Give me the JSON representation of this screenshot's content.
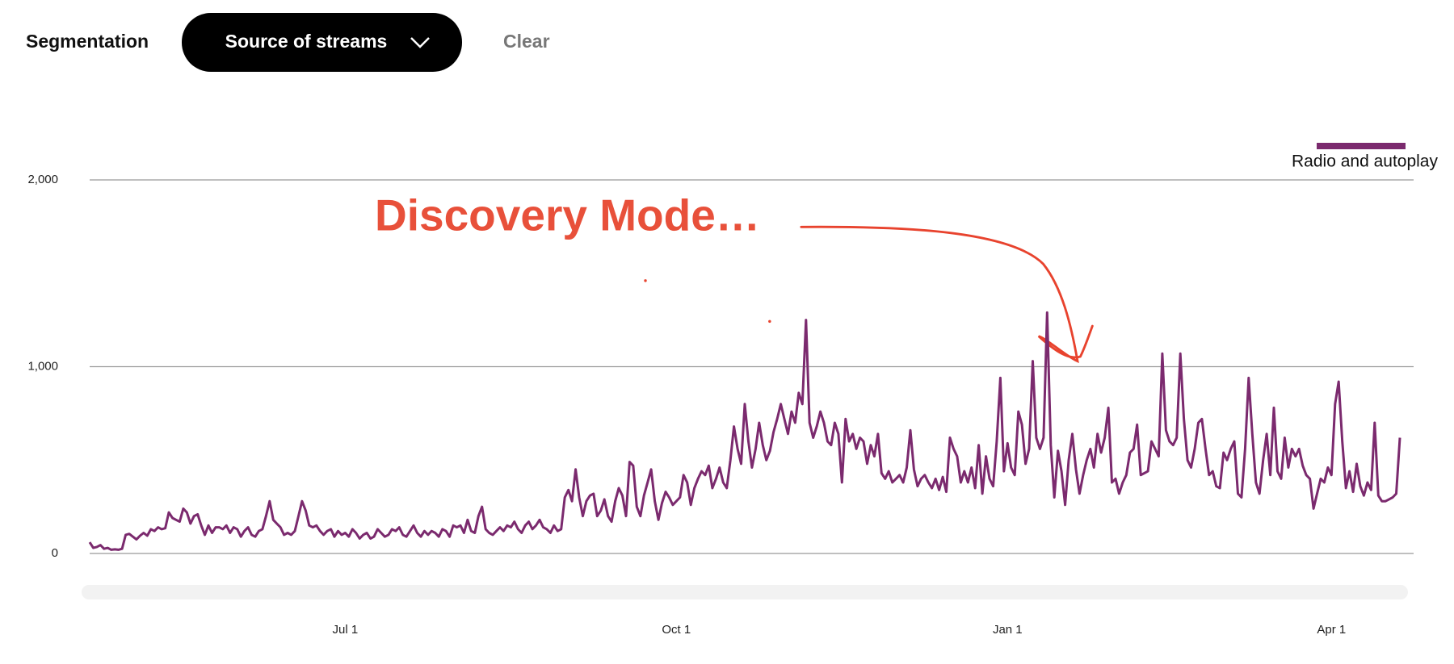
{
  "header": {
    "label": "Segmentation",
    "dropdown": "Source of streams",
    "clear": "Clear"
  },
  "chart_data": {
    "type": "line",
    "annotation": "Discovery Mode…",
    "ylim": [
      0,
      2000
    ],
    "yticks": [
      0,
      {
        "value": 1000,
        "label": "1,000"
      },
      {
        "value": 2000,
        "label": "2,000"
      }
    ],
    "grid": true,
    "legend": "top-right",
    "categories": [
      null,
      null,
      null,
      null,
      null,
      null,
      null,
      null,
      null,
      null,
      null,
      null,
      null,
      null,
      null,
      null,
      null,
      null,
      null,
      null,
      null,
      null,
      null,
      null,
      null,
      null,
      null,
      null,
      null,
      null,
      null,
      null,
      null,
      null,
      null,
      null,
      null,
      null,
      null,
      null,
      null,
      null,
      null,
      null,
      null,
      null,
      null,
      null,
      null,
      null,
      null,
      null,
      null,
      null,
      null,
      null,
      null,
      null,
      null,
      null,
      null,
      null,
      null,
      null,
      null,
      null,
      null,
      null,
      null,
      null,
      null,
      "Jul 1",
      null,
      null,
      null,
      null,
      null,
      null,
      null,
      null,
      null,
      null,
      null,
      null,
      null,
      null,
      null,
      null,
      null,
      null,
      null,
      null,
      null,
      null,
      null,
      null,
      null,
      null,
      null,
      null,
      null,
      null,
      null,
      null,
      null,
      null,
      null,
      null,
      null,
      null,
      null,
      null,
      null,
      null,
      null,
      null,
      null,
      null,
      null,
      null,
      null,
      null,
      null,
      null,
      null,
      null,
      null,
      null,
      null,
      null,
      null,
      null,
      null,
      null,
      null,
      null,
      null,
      null,
      null,
      null,
      null,
      null,
      null,
      null,
      null,
      null,
      null,
      null,
      null,
      null,
      null,
      null,
      null,
      null,
      null,
      null,
      null,
      null,
      null,
      null,
      null,
      null,
      null,
      "Oct 1",
      null,
      null,
      null,
      null,
      null,
      null,
      null,
      null,
      null,
      null,
      null,
      null,
      null,
      null,
      null,
      null,
      null,
      null,
      null,
      null,
      null,
      null,
      null,
      null,
      null,
      null,
      null,
      null,
      null,
      null,
      null,
      null,
      null,
      null,
      null,
      null,
      null,
      null,
      null,
      null,
      null,
      null,
      null,
      null,
      null,
      null,
      null,
      null,
      null,
      null,
      null,
      null,
      null,
      null,
      null,
      null,
      null,
      null,
      null,
      null,
      null,
      null,
      null,
      null,
      null,
      null,
      null,
      null,
      null,
      null,
      null,
      null,
      null,
      null,
      null,
      null,
      null,
      null,
      null,
      null,
      null,
      null,
      null,
      null,
      null,
      null,
      null,
      null,
      null,
      null,
      null,
      "Jan 1",
      null,
      null,
      null,
      null,
      null,
      null,
      null,
      null,
      null,
      null,
      null,
      null,
      null,
      null,
      null,
      null,
      null,
      null,
      null,
      null,
      null,
      null,
      null,
      null,
      null,
      null,
      null,
      null,
      null,
      null,
      null,
      null,
      null,
      null,
      null,
      null,
      null,
      null,
      null,
      null,
      null,
      null,
      null,
      null,
      null,
      null,
      null,
      null,
      null,
      null,
      null,
      null,
      null,
      null,
      null,
      null,
      null,
      null,
      null,
      null,
      null,
      null,
      null,
      null,
      null,
      null,
      null,
      null,
      null,
      null,
      null,
      null,
      null,
      null,
      null,
      null,
      null,
      null,
      null,
      null,
      null,
      null,
      null,
      null,
      null,
      null,
      null,
      null,
      null,
      "Apr 1",
      null,
      null,
      null,
      null,
      null,
      null,
      null,
      null,
      null,
      null,
      null,
      null,
      null,
      null,
      null,
      null,
      null,
      null,
      null
    ],
    "series": [
      {
        "name": "Radio and autoplay",
        "color": "#7b2a6e",
        "values": [
          60,
          30,
          35,
          45,
          25,
          30,
          20,
          22,
          20,
          25,
          100,
          105,
          90,
          75,
          95,
          110,
          95,
          130,
          120,
          140,
          130,
          135,
          220,
          190,
          180,
          170,
          240,
          220,
          160,
          200,
          210,
          150,
          100,
          150,
          110,
          140,
          140,
          130,
          150,
          110,
          140,
          130,
          90,
          120,
          140,
          100,
          90,
          120,
          130,
          200,
          280,
          180,
          160,
          140,
          100,
          110,
          100,
          120,
          200,
          280,
          230,
          150,
          140,
          150,
          120,
          100,
          120,
          130,
          90,
          120,
          100,
          110,
          90,
          130,
          110,
          80,
          100,
          110,
          80,
          90,
          130,
          110,
          90,
          100,
          130,
          120,
          140,
          100,
          90,
          120,
          150,
          110,
          90,
          120,
          100,
          120,
          110,
          90,
          130,
          120,
          90,
          150,
          140,
          150,
          110,
          180,
          120,
          110,
          200,
          250,
          130,
          110,
          100,
          120,
          140,
          120,
          150,
          140,
          170,
          130,
          110,
          150,
          170,
          130,
          150,
          180,
          140,
          130,
          110,
          150,
          120,
          130,
          300,
          340,
          280,
          450,
          300,
          200,
          280,
          310,
          320,
          200,
          230,
          290,
          200,
          170,
          280,
          350,
          310,
          200,
          490,
          470,
          250,
          200,
          310,
          380,
          450,
          280,
          180,
          270,
          330,
          300,
          260,
          280,
          300,
          420,
          380,
          260,
          350,
          400,
          440,
          420,
          470,
          350,
          400,
          460,
          380,
          350,
          500,
          680,
          560,
          480,
          800,
          600,
          460,
          560,
          700,
          580,
          500,
          550,
          650,
          720,
          800,
          720,
          640,
          760,
          700,
          860,
          800,
          1250,
          700,
          620,
          680,
          760,
          700,
          600,
          580,
          700,
          640,
          380,
          720,
          600,
          640,
          560,
          620,
          600,
          480,
          580,
          520,
          640,
          430,
          400,
          440,
          380,
          400,
          420,
          380,
          460,
          660,
          450,
          360,
          400,
          420,
          380,
          350,
          400,
          340,
          410,
          330,
          620,
          560,
          520,
          380,
          440,
          380,
          460,
          350,
          580,
          320,
          520,
          400,
          360,
          600,
          940,
          440,
          590,
          460,
          420,
          760,
          690,
          480,
          560,
          1030,
          620,
          560,
          620,
          1290,
          580,
          300,
          550,
          440,
          260,
          500,
          640,
          450,
          320,
          420,
          500,
          560,
          460,
          640,
          540,
          620,
          780,
          380,
          400,
          320,
          380,
          420,
          540,
          560,
          690,
          420,
          430,
          440,
          600,
          560,
          520,
          1070,
          660,
          600,
          580,
          620,
          1070,
          720,
          500,
          460,
          560,
          700,
          720,
          560,
          420,
          440,
          360,
          350,
          540,
          500,
          560,
          600,
          320,
          300,
          560,
          940,
          640,
          380,
          320,
          500,
          640,
          420,
          780,
          440,
          400,
          620,
          460,
          560,
          520,
          560,
          470,
          420,
          400,
          240,
          320,
          400,
          380,
          460,
          420,
          800,
          920,
          600,
          350,
          440,
          330,
          480,
          360,
          310,
          380,
          340,
          700,
          310,
          280,
          280,
          290,
          300,
          320,
          620
        ]
      }
    ]
  }
}
